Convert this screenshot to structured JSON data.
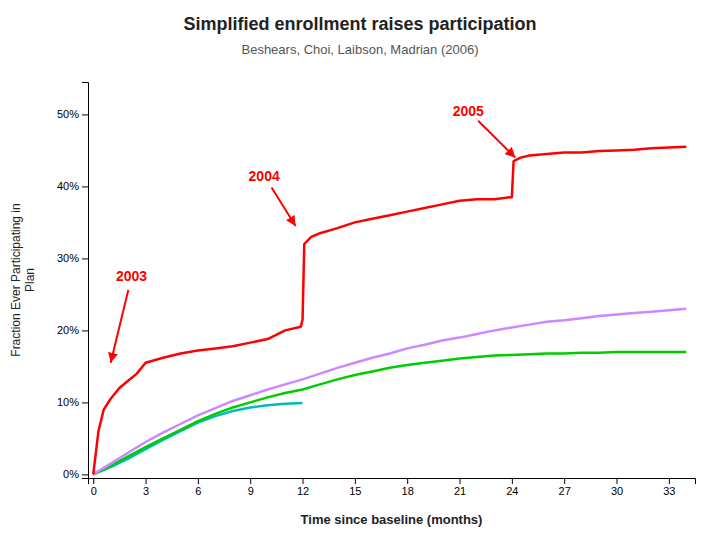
{
  "chart_data": {
    "type": "line",
    "title": "Simplified enrollment raises participation",
    "subtitle": "Beshears, Choi, Laibson, Madrian (2006)",
    "xlabel": "Time since baseline (months)",
    "ylabel": "Fraction Ever Participating in\nPlan",
    "xlim": [
      -0.3,
      34.5
    ],
    "ylim": [
      -0.005,
      0.545
    ],
    "xticks": [
      0,
      3,
      6,
      9,
      12,
      15,
      18,
      21,
      24,
      27,
      30,
      33
    ],
    "yticks": [
      {
        "value": 0.0,
        "label": "0%"
      },
      {
        "value": 0.1,
        "label": "10%"
      },
      {
        "value": 0.2,
        "label": "20%"
      },
      {
        "value": 0.3,
        "label": "30%"
      },
      {
        "value": 0.4,
        "label": "40%"
      },
      {
        "value": 0.5,
        "label": "50%"
      }
    ],
    "grid": false,
    "series": [
      {
        "color": "#FF0000",
        "x": [
          0,
          0.3,
          0.6,
          1.0,
          1.5,
          2.0,
          2.5,
          3.0,
          4,
          5,
          6,
          7,
          8,
          9,
          10,
          11,
          11.9,
          12.0,
          12.1,
          12.5,
          13,
          14,
          15,
          16,
          17,
          18,
          19,
          20,
          21,
          22,
          23,
          23.9,
          24.0,
          24.1,
          24.5,
          25,
          26,
          27,
          28,
          29,
          30,
          31,
          32,
          33,
          34
        ],
        "values": [
          0,
          0.06,
          0.09,
          0.105,
          0.12,
          0.13,
          0.14,
          0.155,
          0.162,
          0.168,
          0.172,
          0.175,
          0.178,
          0.183,
          0.188,
          0.2,
          0.205,
          0.215,
          0.32,
          0.33,
          0.335,
          0.342,
          0.35,
          0.355,
          0.36,
          0.365,
          0.37,
          0.375,
          0.38,
          0.382,
          0.382,
          0.385,
          0.385,
          0.435,
          0.44,
          0.443,
          0.445,
          0.447,
          0.447,
          0.449,
          0.45,
          0.451,
          0.453,
          0.454,
          0.455
        ]
      },
      {
        "color": "#CC88FF",
        "x": [
          0,
          1,
          2,
          3,
          4,
          5,
          6,
          7,
          8,
          9,
          10,
          11,
          12,
          13,
          14,
          15,
          16,
          17,
          18,
          19,
          20,
          21,
          22,
          23,
          24,
          25,
          26,
          27,
          28,
          29,
          30,
          31,
          32,
          33,
          34
        ],
        "values": [
          0,
          0.015,
          0.03,
          0.045,
          0.058,
          0.07,
          0.082,
          0.092,
          0.102,
          0.11,
          0.118,
          0.125,
          0.132,
          0.14,
          0.148,
          0.155,
          0.162,
          0.168,
          0.175,
          0.18,
          0.186,
          0.19,
          0.195,
          0.2,
          0.204,
          0.208,
          0.212,
          0.214,
          0.217,
          0.22,
          0.222,
          0.224,
          0.226,
          0.228,
          0.23
        ]
      },
      {
        "color": "#00CC00",
        "x": [
          0,
          1,
          2,
          3,
          4,
          5,
          6,
          7,
          8,
          9,
          10,
          11,
          12,
          13,
          14,
          15,
          16,
          17,
          18,
          19,
          20,
          21,
          22,
          23,
          24,
          25,
          26,
          27,
          28,
          29,
          30,
          31,
          32,
          33,
          34
        ],
        "values": [
          0,
          0.012,
          0.025,
          0.038,
          0.05,
          0.062,
          0.074,
          0.084,
          0.093,
          0.1,
          0.107,
          0.113,
          0.118,
          0.125,
          0.132,
          0.138,
          0.143,
          0.148,
          0.152,
          0.155,
          0.158,
          0.161,
          0.163,
          0.165,
          0.166,
          0.167,
          0.168,
          0.168,
          0.169,
          0.169,
          0.17,
          0.17,
          0.17,
          0.17,
          0.17
        ]
      },
      {
        "color": "#00BBBB",
        "x": [
          0,
          1,
          2,
          3,
          4,
          5,
          6,
          7,
          8,
          9,
          10,
          11,
          12
        ],
        "values": [
          0,
          0.01,
          0.022,
          0.035,
          0.048,
          0.06,
          0.072,
          0.081,
          0.088,
          0.093,
          0.096,
          0.098,
          0.099
        ]
      }
    ],
    "annotations": [
      {
        "text": "2003",
        "text_x": 2.2,
        "text_y": 0.275,
        "x": 1.0,
        "y": 0.155,
        "color": "#FF0000"
      },
      {
        "text": "2004",
        "text_x": 9.8,
        "text_y": 0.415,
        "x": 11.6,
        "y": 0.345,
        "color": "#FF0000"
      },
      {
        "text": "2005",
        "text_x": 21.5,
        "text_y": 0.505,
        "x": 24.2,
        "y": 0.44,
        "color": "#FF0000"
      }
    ]
  }
}
